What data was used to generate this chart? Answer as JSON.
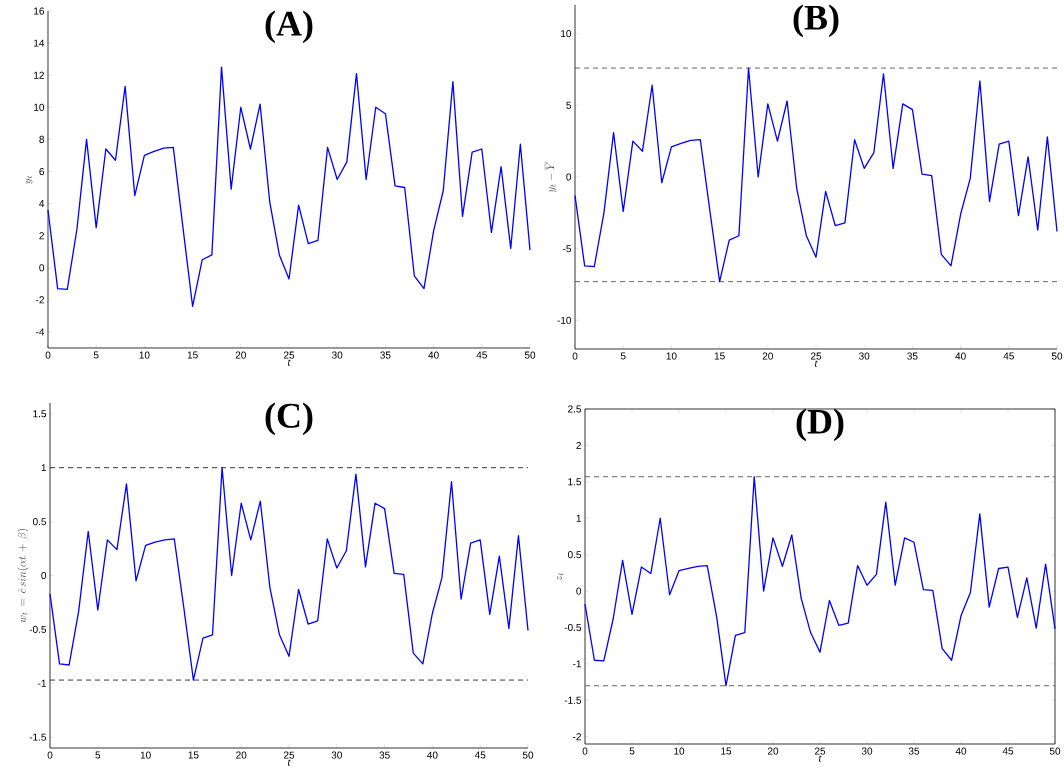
{
  "chart_data": [
    {
      "type": "line",
      "title": "(A)",
      "xlabel": "t",
      "ylabel": "y_t",
      "xlim": [
        0,
        50
      ],
      "ylim": [
        -5,
        16
      ],
      "xticks": [
        0,
        5,
        10,
        15,
        20,
        25,
        30,
        35,
        40,
        45,
        50
      ],
      "yticks": [
        -4,
        -2,
        0,
        2,
        4,
        6,
        8,
        10,
        12,
        14,
        16
      ],
      "line_style": "solid",
      "x": [
        0,
        1,
        2,
        3,
        4,
        5,
        6,
        7,
        8,
        9,
        10,
        11,
        12,
        13,
        14,
        15,
        16,
        17,
        18,
        19,
        20,
        21,
        22,
        23,
        24,
        25,
        26,
        27,
        28,
        29,
        30,
        31,
        32,
        33,
        34,
        35,
        36,
        37,
        38,
        39,
        40,
        41,
        42,
        43,
        44,
        45,
        46,
        47,
        48,
        49,
        50
      ],
      "series": [
        {
          "color": "#0000ff",
          "values": [
            3.6,
            -1.3,
            -1.35,
            2.4,
            8.0,
            2.5,
            7.4,
            6.7,
            11.3,
            4.5,
            7.0,
            7.25,
            7.45,
            7.5,
            2.5,
            -2.4,
            0.5,
            0.8,
            12.5,
            4.9,
            10.0,
            7.4,
            10.2,
            4.1,
            0.8,
            -0.7,
            3.9,
            1.5,
            1.7,
            7.5,
            5.5,
            6.6,
            12.1,
            5.5,
            10.0,
            9.6,
            5.1,
            5.0,
            -0.5,
            -1.3,
            2.3,
            4.8,
            11.6,
            3.2,
            7.2,
            7.4,
            2.2,
            6.3,
            1.2,
            7.7,
            1.1
          ]
        }
      ]
    },
    {
      "type": "line",
      "title": "(B)",
      "xlabel": "t",
      "ylabel": "y_t - \\overline{Y}",
      "xlim": [
        0,
        50
      ],
      "ylim": [
        -12,
        12
      ],
      "xticks": [
        0,
        5,
        10,
        15,
        20,
        25,
        30,
        35,
        40,
        45,
        50
      ],
      "yticks": [
        -10,
        -5,
        0,
        5,
        10
      ],
      "line_style": "solid",
      "x": [
        0,
        1,
        2,
        3,
        4,
        5,
        6,
        7,
        8,
        9,
        10,
        11,
        12,
        13,
        14,
        15,
        16,
        17,
        18,
        19,
        20,
        21,
        22,
        23,
        24,
        25,
        26,
        27,
        28,
        29,
        30,
        31,
        32,
        33,
        34,
        35,
        36,
        37,
        38,
        39,
        40,
        41,
        42,
        43,
        44,
        45,
        46,
        47,
        48,
        49,
        50
      ],
      "series": [
        {
          "color": "#0000ff",
          "values": [
            -1.3,
            -6.2,
            -6.25,
            -2.5,
            3.1,
            -2.4,
            2.5,
            1.8,
            6.4,
            -0.4,
            2.1,
            2.35,
            2.55,
            2.6,
            -2.4,
            -7.3,
            -4.4,
            -4.1,
            7.6,
            0.0,
            5.1,
            2.5,
            5.3,
            -0.8,
            -4.1,
            -5.6,
            -1.0,
            -3.4,
            -3.2,
            2.6,
            0.6,
            1.7,
            7.2,
            0.6,
            5.1,
            4.7,
            0.2,
            0.1,
            -5.4,
            -6.2,
            -2.6,
            -0.1,
            6.7,
            -1.7,
            2.3,
            2.5,
            -2.7,
            1.4,
            -3.7,
            2.8,
            -3.8
          ]
        }
      ],
      "ref_lines": [
        {
          "axis": "y",
          "value": 7.6,
          "color": "#555555",
          "line_style": "dashed"
        },
        {
          "axis": "y",
          "value": -7.3,
          "color": "#555555",
          "line_style": "dashed"
        }
      ]
    },
    {
      "type": "line",
      "title": "(C)",
      "xlabel": "t",
      "ylabel": "w_t \\,=\\, \\hat{c}\\, sin(\\alpha t \\,+\\, \\beta)",
      "xlim": [
        0,
        50
      ],
      "ylim": [
        -1.6,
        1.6
      ],
      "xticks": [
        0,
        5,
        10,
        15,
        20,
        25,
        30,
        35,
        40,
        45,
        50
      ],
      "yticks": [
        -1.5,
        -1,
        -0.5,
        0,
        0.5,
        1,
        1.5
      ],
      "line_style": "solid",
      "x": [
        0,
        1,
        2,
        3,
        4,
        5,
        6,
        7,
        8,
        9,
        10,
        11,
        12,
        13,
        14,
        15,
        16,
        17,
        18,
        19,
        20,
        21,
        22,
        23,
        24,
        25,
        26,
        27,
        28,
        29,
        30,
        31,
        32,
        33,
        34,
        35,
        36,
        37,
        38,
        39,
        40,
        41,
        42,
        43,
        44,
        45,
        46,
        47,
        48,
        49,
        50
      ],
      "series": [
        {
          "color": "#0000ff",
          "values": [
            -0.17,
            -0.82,
            -0.83,
            -0.33,
            0.41,
            -0.32,
            0.33,
            0.24,
            0.85,
            -0.05,
            0.28,
            0.31,
            0.33,
            0.34,
            -0.3,
            -0.97,
            -0.58,
            -0.55,
            1.0,
            0.0,
            0.67,
            0.33,
            0.69,
            -0.11,
            -0.55,
            -0.75,
            -0.13,
            -0.45,
            -0.42,
            0.34,
            0.07,
            0.23,
            0.94,
            0.08,
            0.67,
            0.62,
            0.02,
            0.01,
            -0.72,
            -0.82,
            -0.35,
            -0.02,
            0.87,
            -0.22,
            0.3,
            0.33,
            -0.36,
            0.18,
            -0.49,
            0.37,
            -0.51
          ]
        }
      ],
      "ref_lines": [
        {
          "axis": "y",
          "value": 1,
          "color": "#222222",
          "line_style": "dashed"
        },
        {
          "axis": "y",
          "value": -0.97,
          "color": "#222222",
          "line_style": "dashed"
        }
      ]
    },
    {
      "type": "line",
      "title": "(D)",
      "xlabel": "t",
      "ylabel": "z_t",
      "xlim": [
        0,
        50
      ],
      "ylim": [
        -2.1,
        2.5
      ],
      "xticks": [
        0,
        5,
        10,
        15,
        20,
        25,
        30,
        35,
        40,
        45,
        50
      ],
      "yticks": [
        -2,
        -1.5,
        -1,
        -0.5,
        0,
        0.5,
        1,
        1.5,
        2,
        2.5
      ],
      "line_style": "solid",
      "x": [
        0,
        1,
        2,
        3,
        4,
        5,
        6,
        7,
        8,
        9,
        10,
        11,
        12,
        13,
        14,
        15,
        16,
        17,
        18,
        19,
        20,
        21,
        22,
        23,
        24,
        25,
        26,
        27,
        28,
        29,
        30,
        31,
        32,
        33,
        34,
        35,
        36,
        37,
        38,
        39,
        40,
        41,
        42,
        43,
        44,
        45,
        46,
        47,
        48,
        49,
        50
      ],
      "series": [
        {
          "color": "#0000ff",
          "values": [
            -0.18,
            -0.95,
            -0.96,
            -0.38,
            0.42,
            -0.32,
            0.33,
            0.24,
            1.0,
            -0.05,
            0.28,
            0.31,
            0.34,
            0.35,
            -0.35,
            -1.3,
            -0.61,
            -0.57,
            1.57,
            0.0,
            0.73,
            0.34,
            0.77,
            -0.1,
            -0.57,
            -0.84,
            -0.13,
            -0.47,
            -0.44,
            0.35,
            0.08,
            0.23,
            1.22,
            0.08,
            0.73,
            0.67,
            0.02,
            0.01,
            -0.79,
            -0.95,
            -0.34,
            -0.02,
            1.06,
            -0.22,
            0.31,
            0.33,
            -0.36,
            0.18,
            -0.51,
            0.37,
            -0.52
          ]
        }
      ],
      "ref_lines": [
        {
          "axis": "y",
          "value": 1.57,
          "color": "#555555",
          "line_style": "dashed"
        },
        {
          "axis": "y",
          "value": -1.3,
          "color": "#555555",
          "line_style": "dashed"
        }
      ]
    }
  ]
}
